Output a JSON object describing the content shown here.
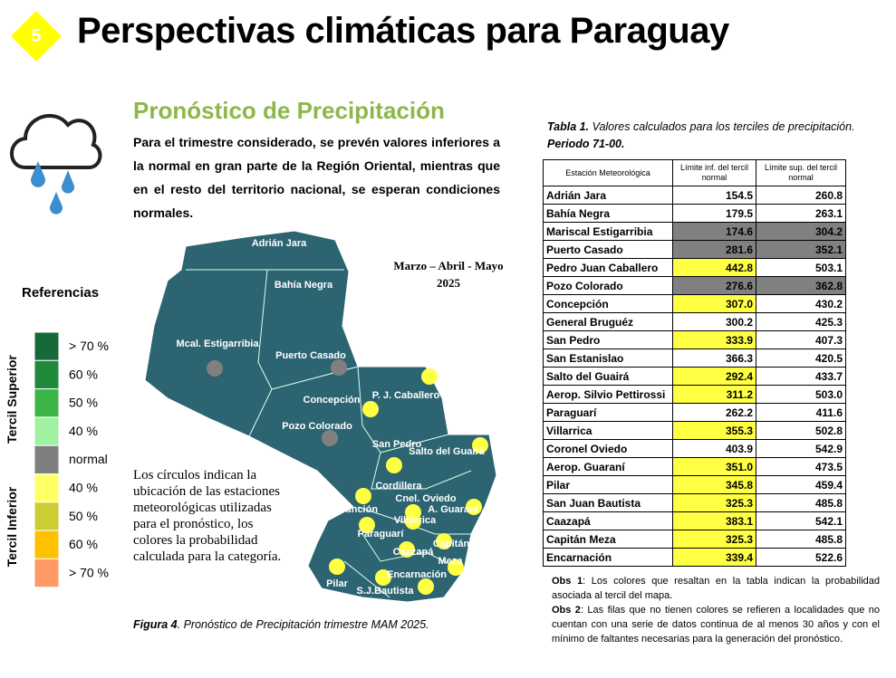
{
  "header": {
    "number": "5",
    "title": "Perspectivas climáticas para Paraguay"
  },
  "section": {
    "title": "Pronóstico de Precipitación",
    "text": "Para el trimestre considerado, se prevén valores inferiores a la normal en gran parte de la Región Oriental, mientras que en el resto del territorio nacional, se esperan condiciones normales."
  },
  "legend": {
    "title": "Referencias",
    "upper_group": "Tercil Superior",
    "lower_group": "Tercil Inferior",
    "items": [
      {
        "label": "> 70 %",
        "color": "#17693a"
      },
      {
        "label": "60 %",
        "color": "#1f8a3c"
      },
      {
        "label": "50 %",
        "color": "#3db446"
      },
      {
        "label": "40 %",
        "color": "#a0f2a0"
      },
      {
        "label": "normal",
        "color": "#7f7f7f"
      },
      {
        "label": "40  %",
        "color": "#ffff66"
      },
      {
        "label": "50  %",
        "color": "#cccc33"
      },
      {
        "label": "60 %",
        "color": "#ffc000"
      },
      {
        "label": "> 70 %",
        "color": "#ff9966"
      }
    ]
  },
  "map": {
    "period": "Marzo – Abril - Mayo",
    "year": "2025",
    "labels": [
      {
        "text": "Adrián Jara",
        "color": null
      },
      {
        "text": "Bahía Negra",
        "color": null
      },
      {
        "text": "Mcal. Estigarribia",
        "color": "#808080"
      },
      {
        "text": "Puerto Casado",
        "color": "#808080"
      },
      {
        "text": "P. J. Caballero",
        "color": "#ffff44"
      },
      {
        "text": "Concepción",
        "color": "#ffff44"
      },
      {
        "text": "Pozo Colorado",
        "color": "#808080"
      },
      {
        "text": "San Pedro",
        "color": "#ffff44"
      },
      {
        "text": "Salto del Guairá",
        "color": "#ffff44"
      },
      {
        "text": "Cordillera",
        "color": null
      },
      {
        "text": "Asunción",
        "color": "#ffff44"
      },
      {
        "text": "Cnel. Oviedo",
        "color": "#ffff44"
      },
      {
        "text": "Villarrica",
        "color": "#ffff44"
      },
      {
        "text": "A. Guaraní",
        "color": "#ffff44"
      },
      {
        "text": "Paraguarí",
        "color": "#ffff44"
      },
      {
        "text": "Caazapá",
        "color": "#ffff44"
      },
      {
        "text": "Capitán",
        "color": "#ffff44"
      },
      {
        "text": "Meza",
        "color": "#ffff44"
      },
      {
        "text": "Pilar",
        "color": "#ffff44"
      },
      {
        "text": "Encarnación",
        "color": "#ffff44"
      },
      {
        "text": "S.J.Bautista",
        "color": "#ffff44"
      }
    ],
    "note": "Los círculos indican la ubicación de las estaciones meteorológicas utilizadas para el pronóstico, los colores la probabilidad calculada para la categoría.",
    "caption_label": "Figura 4",
    "caption": ". Pronóstico de Precipitación trimestre MAM 2025."
  },
  "table": {
    "caption_label": "Tabla 1.",
    "caption": "Valores calculados para los terciles de precipitación.",
    "period": "Periodo 71-00.",
    "headers": [
      "Estación Meteorológica",
      "Límite inf. del tercil normal",
      "Límite sup. del tercil normal"
    ],
    "rows": [
      [
        "Adrián Jara",
        "154.5",
        "260.8",
        "#ffffff",
        "#ffffff"
      ],
      [
        "Bahía Negra",
        "179.5",
        "263.1",
        "#ffffff",
        "#ffffff"
      ],
      [
        "Mariscal Estigarribia",
        "174.6",
        "304.2",
        "#808080",
        "#808080"
      ],
      [
        "Puerto Casado",
        "281.6",
        "352.1",
        "#808080",
        "#808080"
      ],
      [
        "Pedro Juan Caballero",
        "442.8",
        "503.1",
        "#ffff44",
        "#ffffff"
      ],
      [
        "Pozo Colorado",
        "276.6",
        "362.8",
        "#808080",
        "#808080"
      ],
      [
        "Concepción",
        "307.0",
        "430.2",
        "#ffff44",
        "#ffffff"
      ],
      [
        "General Bruguéz",
        "300.2",
        "425.3",
        "#ffffff",
        "#ffffff"
      ],
      [
        "San Pedro",
        "333.9",
        "407.3",
        "#ffff44",
        "#ffffff"
      ],
      [
        "San Estanislao",
        "366.3",
        "420.5",
        "#ffffff",
        "#ffffff"
      ],
      [
        "Salto del Guairá",
        "292.4",
        "433.7",
        "#ffff44",
        "#ffffff"
      ],
      [
        "Aerop. Silvio Pettirossi",
        "311.2",
        "503.0",
        "#ffff44",
        "#ffffff"
      ],
      [
        "Paraguarí",
        "262.2",
        "411.6",
        "#ffffff",
        "#ffffff"
      ],
      [
        "Villarrica",
        "355.3",
        "502.8",
        "#ffff44",
        "#ffffff"
      ],
      [
        "Coronel Oviedo",
        "403.9",
        "542.9",
        "#ffffff",
        "#ffffff"
      ],
      [
        "Aerop. Guaraní",
        "351.0",
        "473.5",
        "#ffff44",
        "#ffffff"
      ],
      [
        "Pilar",
        "345.8",
        "459.4",
        "#ffff44",
        "#ffffff"
      ],
      [
        "San Juan Bautista",
        "325.3",
        "485.8",
        "#ffff44",
        "#ffffff"
      ],
      [
        "Caazapá",
        "383.1",
        "542.1",
        "#ffff44",
        "#ffffff"
      ],
      [
        "Capitán Meza",
        "325.3",
        "485.8",
        "#ffff44",
        "#ffffff"
      ],
      [
        "Encarnación",
        "339.4",
        "522.6",
        "#ffff44",
        "#ffffff"
      ]
    ],
    "notes": [
      {
        "label": "Obs 1",
        "text": ": Los colores que resaltan en la tabla indican la probabilidad asociada al tercil del mapa."
      },
      {
        "label": "Obs 2",
        "text": ": Las filas que no tienen colores se refieren a localidades que no cuentan con una serie de datos continua de al menos 30 años y con el mínimo de faltantes necesarias para la generación del pronóstico."
      }
    ]
  }
}
